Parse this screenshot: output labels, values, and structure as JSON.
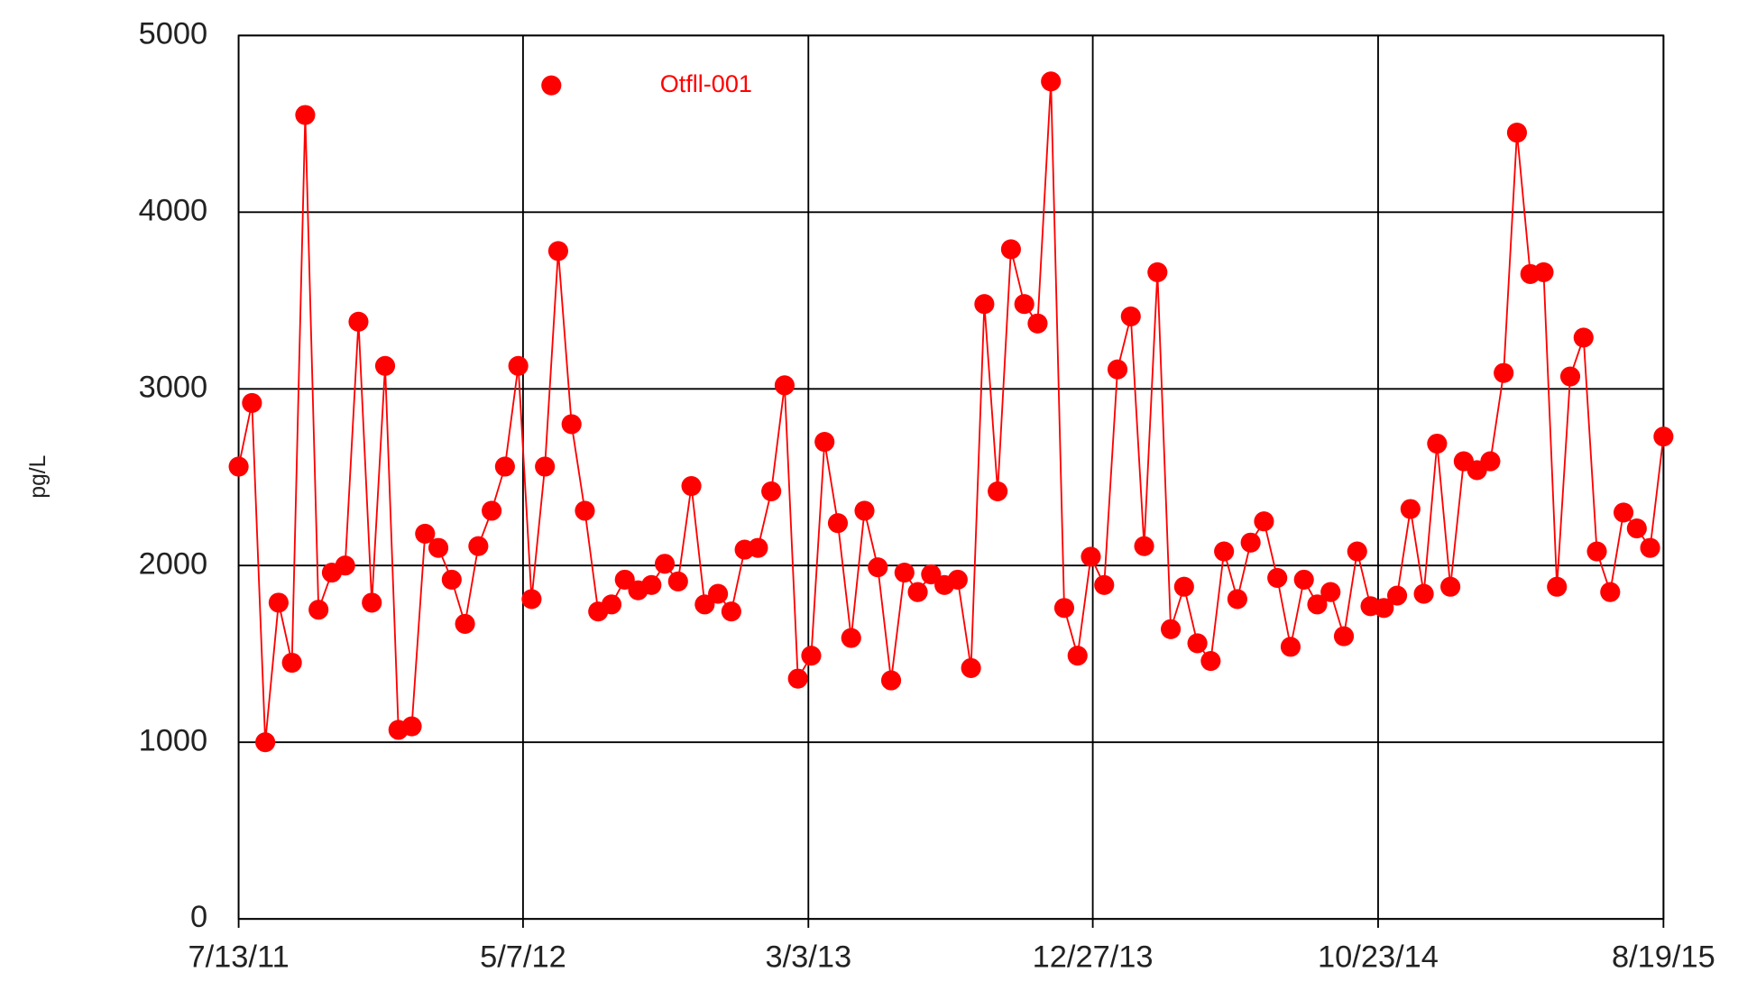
{
  "chart_data": {
    "type": "line",
    "y_label": "pg/L",
    "x": [
      "7/13/11",
      "7/27/11",
      "8/10/11",
      "8/24/11",
      "9/7/11",
      "9/21/11",
      "10/5/11",
      "10/19/11",
      "11/2/11",
      "11/16/11",
      "11/30/11",
      "12/14/11",
      "12/28/11",
      "1/11/12",
      "1/25/12",
      "2/8/12",
      "2/22/12",
      "3/7/12",
      "3/21/12",
      "4/4/12",
      "4/18/12",
      "5/2/12",
      "5/16/12",
      "5/30/12",
      "6/13/12",
      "6/27/12",
      "7/11/12",
      "7/25/12",
      "8/8/12",
      "8/22/12",
      "9/5/12",
      "9/19/12",
      "10/3/12",
      "10/17/12",
      "10/31/12",
      "11/14/12",
      "11/28/12",
      "12/12/12",
      "12/26/12",
      "1/9/13",
      "1/23/13",
      "2/6/13",
      "2/20/13",
      "3/6/13",
      "3/20/13",
      "4/3/13",
      "4/17/13",
      "5/1/13",
      "5/15/13",
      "5/29/13",
      "6/12/13",
      "6/26/13",
      "7/10/13",
      "7/24/13",
      "8/7/13",
      "8/21/13",
      "9/4/13",
      "9/18/13",
      "10/2/13",
      "10/16/13",
      "10/30/13",
      "11/13/13",
      "11/27/13",
      "12/11/13",
      "12/25/13",
      "1/8/14",
      "1/22/14",
      "2/5/14",
      "2/19/14",
      "3/5/14",
      "3/19/14",
      "4/2/14",
      "4/16/14",
      "4/30/14",
      "5/14/14",
      "5/28/14",
      "6/11/14",
      "6/25/14",
      "7/9/14",
      "7/23/14",
      "8/6/14",
      "8/20/14",
      "9/3/14",
      "9/17/14",
      "10/1/14",
      "10/15/14",
      "10/29/14",
      "11/12/14",
      "11/26/14",
      "12/10/14",
      "12/24/14",
      "1/7/15",
      "1/21/15",
      "2/4/15",
      "2/18/15",
      "3/4/15",
      "3/18/15",
      "4/1/15",
      "4/15/15",
      "4/29/15",
      "5/13/15",
      "5/27/15",
      "6/10/15",
      "6/24/15",
      "7/8/15",
      "7/22/15",
      "8/5/15",
      "8/19/15"
    ],
    "series": [
      {
        "name": "Otfll-001",
        "color": "#ff0000",
        "values": [
          2560,
          2920,
          1000,
          1790,
          1450,
          4550,
          1750,
          1960,
          2000,
          3380,
          1790,
          3130,
          1070,
          1090,
          2180,
          2100,
          1920,
          1670,
          2110,
          2310,
          2560,
          3130,
          1810,
          2560,
          3780,
          2800,
          2310,
          1740,
          1780,
          1920,
          1860,
          1890,
          2010,
          1910,
          2450,
          1780,
          1840,
          1740,
          2090,
          2100,
          2420,
          3020,
          1360,
          1490,
          2700,
          2240,
          1590,
          2310,
          1990,
          1350,
          1960,
          1850,
          1950,
          1890,
          1920,
          1420,
          3480,
          2420,
          3790,
          3480,
          3370,
          4740,
          1760,
          1490,
          2050,
          1890,
          3110,
          3410,
          2110,
          3660,
          1640,
          1880,
          1560,
          1460,
          2080,
          1810,
          2130,
          2250,
          1930,
          1540,
          1920,
          1780,
          1850,
          1600,
          2080,
          1770,
          1760,
          1830,
          2320,
          1840,
          2690,
          1880,
          2590,
          2540,
          2590,
          3090,
          4450,
          3650,
          3660,
          1880,
          3070,
          3290,
          2080,
          1850,
          2300,
          2210,
          2100,
          2730
        ]
      }
    ],
    "xlim": [
      "7/13/11",
      "8/19/15"
    ],
    "xticks": [
      "7/13/11",
      "5/7/12",
      "3/3/13",
      "12/27/13",
      "10/23/14",
      "8/19/15"
    ],
    "ylim": [
      0,
      5000
    ],
    "yticks": [
      0,
      1000,
      2000,
      3000,
      4000,
      5000
    ],
    "grid": true
  }
}
